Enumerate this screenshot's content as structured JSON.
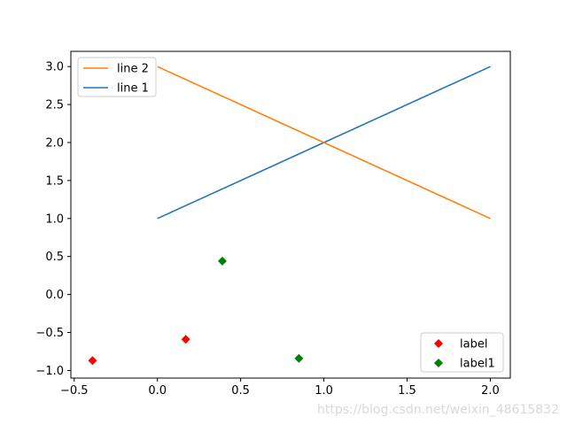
{
  "chart_data": {
    "type": "line",
    "title": "",
    "xlabel": "",
    "ylabel": "",
    "xlim": [
      -0.52,
      2.12
    ],
    "ylim": [
      -1.1,
      3.2
    ],
    "xticks": [
      -0.5,
      0.0,
      0.5,
      1.0,
      1.5,
      2.0
    ],
    "xtick_labels": [
      "−0.5",
      "0.0",
      "0.5",
      "1.0",
      "1.5",
      "2.0"
    ],
    "yticks": [
      -1.0,
      -0.5,
      0.0,
      0.5,
      1.0,
      1.5,
      2.0,
      2.5,
      3.0
    ],
    "ytick_labels": [
      "−1.0",
      "−0.5",
      "0.0",
      "0.5",
      "1.0",
      "1.5",
      "2.0",
      "2.5",
      "3.0"
    ],
    "grid": false,
    "lines": [
      {
        "name": "line 1",
        "color": "#1f77b4",
        "x": [
          0,
          1,
          2
        ],
        "y": [
          1,
          2,
          3
        ]
      },
      {
        "name": "line 2",
        "color": "#ff7f0e",
        "x": [
          0,
          1,
          2
        ],
        "y": [
          3,
          2,
          1
        ]
      }
    ],
    "scatter": [
      {
        "name": "label",
        "color": "#ff0000",
        "marker": "diamond",
        "points": [
          [
            -0.39,
            -0.87
          ],
          [
            0.17,
            -0.59
          ]
        ]
      },
      {
        "name": "label1",
        "color": "#008000",
        "marker": "diamond",
        "points": [
          [
            0.39,
            0.44
          ],
          [
            0.85,
            -0.84
          ]
        ]
      }
    ],
    "legends": [
      {
        "placement": "top-left",
        "entries": [
          "line 2",
          "line 1"
        ]
      },
      {
        "placement": "bottom-right",
        "entries": [
          "label",
          "label1"
        ]
      }
    ]
  },
  "watermark": "https://blog.csdn.net/weixin_48615832"
}
